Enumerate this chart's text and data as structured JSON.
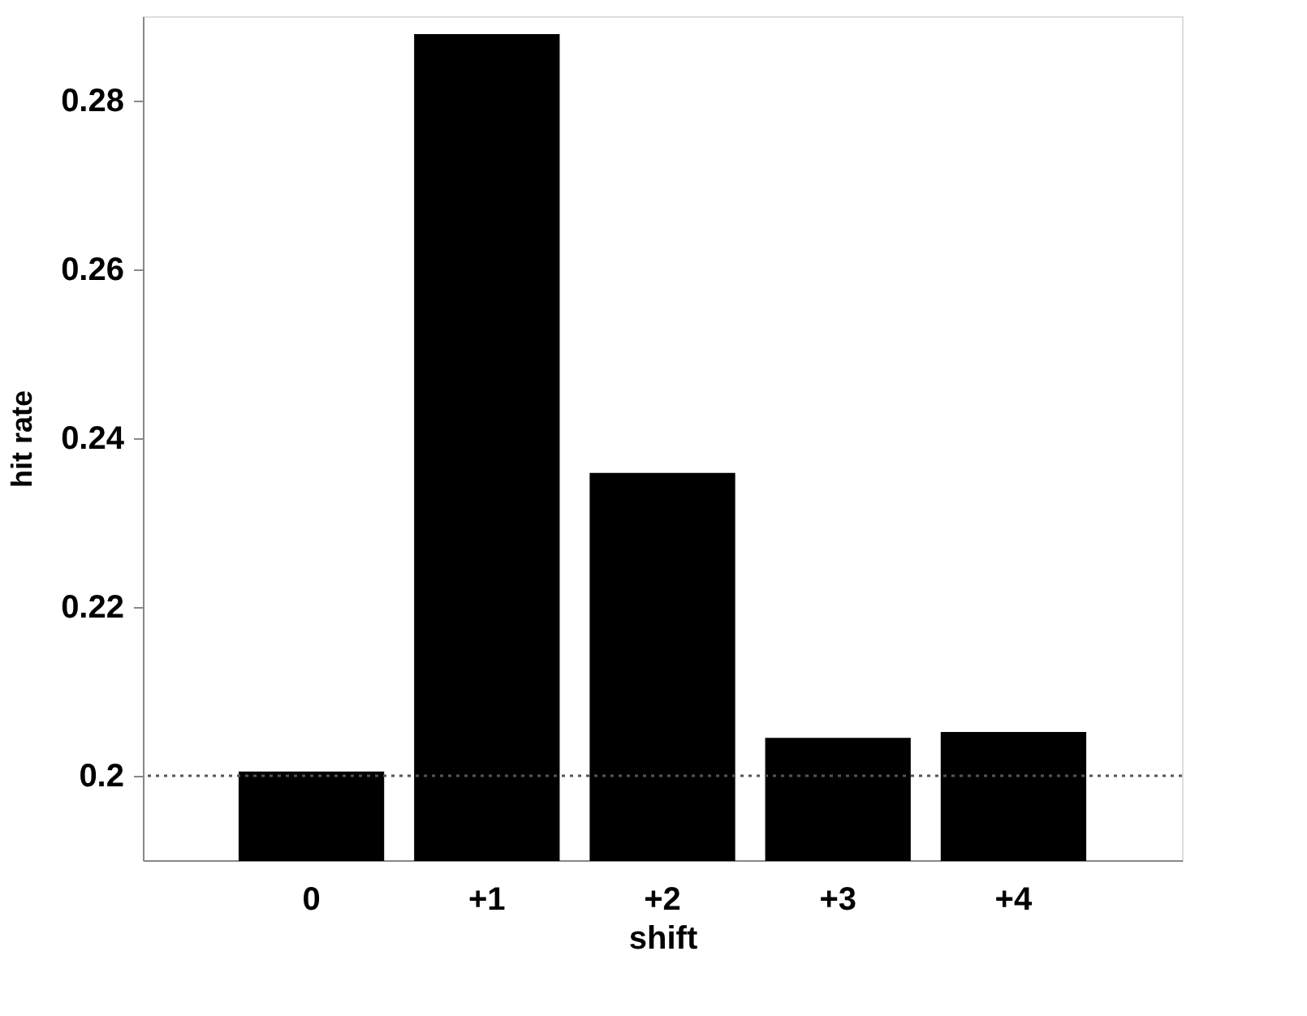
{
  "chart_data": {
    "type": "bar",
    "xlabel": "shift",
    "ylabel": "hit rate",
    "categories": [
      "0",
      "+1",
      "+2",
      "+3",
      "+4"
    ],
    "values": [
      0.2004,
      0.2878,
      0.2358,
      0.2044,
      0.2051
    ],
    "color": "#000000",
    "ylim": [
      0.19,
      0.29
    ],
    "yticks": [
      0.2,
      0.22,
      0.24,
      0.26,
      0.28
    ],
    "ref_lines": [
      {
        "axis": "y",
        "value": 0.2,
        "color": "#555555",
        "line_style": "dotted"
      }
    ],
    "grid": false
  }
}
